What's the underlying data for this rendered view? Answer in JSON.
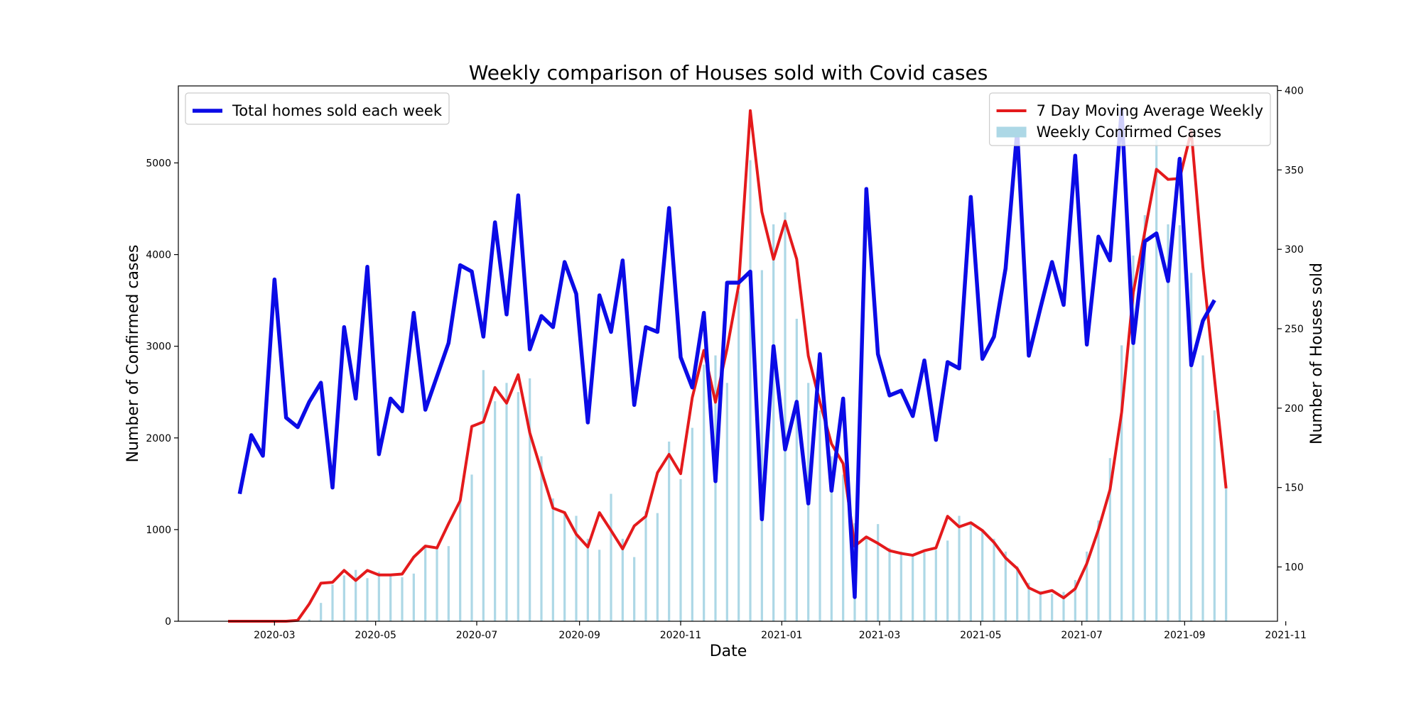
{
  "chart_data": {
    "type": "line",
    "title": "Weekly comparison of Houses sold with Covid cases",
    "xlabel": "Date",
    "ylabel": "Number of Confirmed cases",
    "y2label": "Number of Houses sold",
    "x": [
      "2020-02-02",
      "2020-02-09",
      "2020-02-16",
      "2020-02-23",
      "2020-03-01",
      "2020-03-08",
      "2020-03-15",
      "2020-03-22",
      "2020-03-29",
      "2020-04-05",
      "2020-04-12",
      "2020-04-19",
      "2020-04-26",
      "2020-05-03",
      "2020-05-10",
      "2020-05-17",
      "2020-05-24",
      "2020-05-31",
      "2020-06-07",
      "2020-06-14",
      "2020-06-21",
      "2020-06-28",
      "2020-07-05",
      "2020-07-12",
      "2020-07-19",
      "2020-07-26",
      "2020-08-02",
      "2020-08-09",
      "2020-08-16",
      "2020-08-23",
      "2020-08-30",
      "2020-09-06",
      "2020-09-13",
      "2020-09-20",
      "2020-09-27",
      "2020-10-04",
      "2020-10-11",
      "2020-10-18",
      "2020-10-25",
      "2020-11-01",
      "2020-11-08",
      "2020-11-15",
      "2020-11-22",
      "2020-11-29",
      "2020-12-06",
      "2020-12-13",
      "2020-12-20",
      "2020-12-27",
      "2021-01-03",
      "2021-01-10",
      "2021-01-17",
      "2021-01-24",
      "2021-01-31",
      "2021-02-07",
      "2021-02-14",
      "2021-02-21",
      "2021-02-28",
      "2021-03-07",
      "2021-03-14",
      "2021-03-21",
      "2021-03-28",
      "2021-04-04",
      "2021-04-11",
      "2021-04-18",
      "2021-04-25",
      "2021-05-02",
      "2021-05-09",
      "2021-05-16",
      "2021-05-23",
      "2021-05-30",
      "2021-06-06",
      "2021-06-13",
      "2021-06-20",
      "2021-06-27",
      "2021-07-04",
      "2021-07-11",
      "2021-07-18",
      "2021-07-25",
      "2021-08-01",
      "2021-08-08",
      "2021-08-15",
      "2021-08-22",
      "2021-08-29",
      "2021-09-05",
      "2021-09-12",
      "2021-09-19",
      "2021-09-26"
    ],
    "series": [
      {
        "name": "Weekly Confirmed Cases",
        "type": "bar",
        "color": "#add8e6",
        "legend": "upper right",
        "values": [
          0,
          0,
          0,
          0,
          0,
          0,
          0,
          20,
          200,
          400,
          500,
          560,
          470,
          540,
          500,
          480,
          520,
          820,
          800,
          820,
          1300,
          1600,
          2740,
          2400,
          2600,
          2500,
          2650,
          1800,
          1340,
          1200,
          1150,
          900,
          780,
          1390,
          900,
          700,
          1200,
          1180,
          1960,
          1550,
          2110,
          2800,
          2900,
          2600,
          3600,
          5030,
          3830,
          4330,
          4460,
          3300,
          2600,
          2300,
          1800,
          1600,
          1070,
          900,
          1060,
          800,
          760,
          730,
          750,
          780,
          880,
          1150,
          1080,
          1000,
          900,
          760,
          600,
          420,
          330,
          300,
          320,
          450,
          760,
          1100,
          1780,
          3010,
          3990,
          4430,
          5250,
          4330,
          4320,
          3800,
          2900,
          2300,
          1450
        ]
      },
      {
        "name": "7 Day Moving Average Weekly",
        "type": "line",
        "color": "#e41a1c",
        "legend": "upper right",
        "values": [
          0,
          0,
          0,
          0,
          0,
          0,
          10,
          190,
          415,
          425,
          555,
          445,
          555,
          505,
          505,
          515,
          700,
          820,
          800,
          1065,
          1315,
          2125,
          2175,
          2550,
          2380,
          2690,
          2055,
          1640,
          1235,
          1185,
          950,
          810,
          1185,
          990,
          790,
          1040,
          1145,
          1620,
          1820,
          1610,
          2440,
          2955,
          2390,
          2975,
          3665,
          5570,
          4465,
          3950,
          4365,
          3950,
          2895,
          2390,
          1935,
          1720,
          820,
          920,
          850,
          770,
          740,
          720,
          770,
          800,
          1145,
          1030,
          1075,
          990,
          860,
          690,
          575,
          365,
          305,
          335,
          255,
          355,
          630,
          1000,
          1435,
          2280,
          3585,
          4250,
          4930,
          4820,
          4830,
          5345,
          3865,
          2650,
          1450
        ]
      },
      {
        "name": "Total homes sold each week",
        "type": "line",
        "color": "#0b0be6",
        "axis": "y2",
        "legend": "upper left",
        "values": [
          null,
          146,
          183,
          170,
          281,
          194,
          188,
          204,
          216,
          150,
          251,
          206,
          289,
          171,
          206,
          198,
          260,
          199,
          220,
          241,
          290,
          286,
          245,
          317,
          259,
          334,
          237,
          258,
          251,
          292,
          272,
          191,
          271,
          248,
          293,
          202,
          251,
          248,
          326,
          232,
          213,
          260,
          154,
          279,
          279,
          286,
          130,
          239,
          174,
          204,
          140,
          234,
          148,
          206,
          81,
          338,
          234,
          208,
          211,
          195,
          230,
          180,
          229,
          225,
          333,
          231,
          245,
          288,
          375,
          233,
          263,
          292,
          265,
          359,
          240,
          308,
          293,
          388,
          241,
          305,
          310,
          280,
          357,
          227,
          255,
          268,
          null
        ]
      }
    ],
    "xlim": [
      "2020-01-03",
      "2021-10-27"
    ],
    "xticks": [
      {
        "value": "2020-03-01",
        "label": "2020-03"
      },
      {
        "value": "2020-05-01",
        "label": "2020-05"
      },
      {
        "value": "2020-07-01",
        "label": "2020-07"
      },
      {
        "value": "2020-09-01",
        "label": "2020-09"
      },
      {
        "value": "2020-11-01",
        "label": "2020-11"
      },
      {
        "value": "2021-01-01",
        "label": "2021-01"
      },
      {
        "value": "2021-03-01",
        "label": "2021-03"
      },
      {
        "value": "2021-05-01",
        "label": "2021-05"
      },
      {
        "value": "2021-07-01",
        "label": "2021-07"
      },
      {
        "value": "2021-09-01",
        "label": "2021-09"
      },
      {
        "value": "2021-11-01",
        "label": "2021-11"
      }
    ],
    "ylim": [
      0,
      5840
    ],
    "yticks": [
      0,
      1000,
      2000,
      3000,
      4000,
      5000
    ],
    "y2lim": [
      65.8,
      402.9
    ],
    "y2ticks": [
      100,
      150,
      200,
      250,
      300,
      350,
      400
    ],
    "grid": false
  }
}
